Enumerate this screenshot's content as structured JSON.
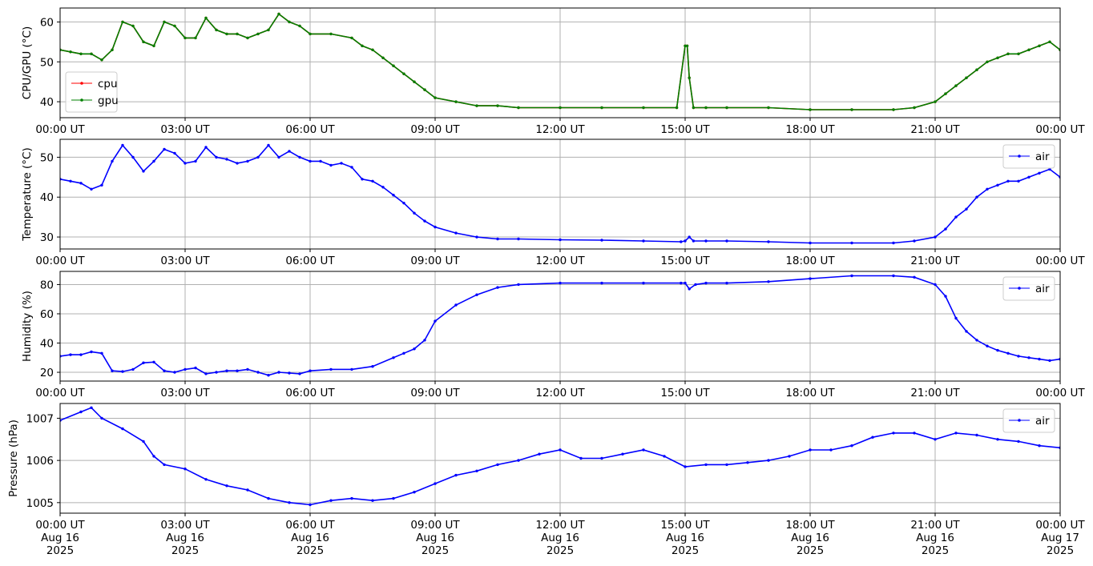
{
  "chart_data": [
    {
      "type": "line",
      "ylabel": "CPU/GPU (°C)",
      "ylim": [
        36,
        63.5
      ],
      "yticks": [
        40,
        50,
        60
      ],
      "xlim": [
        "2025-08-16T00:00",
        "2025-08-17T00:00"
      ],
      "xtick_labels": [
        "00:00 UT",
        "03:00 UT",
        "06:00 UT",
        "09:00 UT",
        "12:00 UT",
        "15:00 UT",
        "18:00 UT",
        "21:00 UT",
        "00:00 UT"
      ],
      "grid": true,
      "legend": "lower-left",
      "series": [
        {
          "name": "cpu",
          "color": "#ff0000",
          "x": [
            0,
            0.25,
            0.5,
            0.75,
            1,
            1.25,
            1.5,
            1.75,
            2,
            2.25,
            2.5,
            2.75,
            3,
            3.25,
            3.5,
            3.75,
            4,
            4.25,
            4.5,
            4.75,
            5,
            5.25,
            5.5,
            5.75,
            6,
            6.5,
            7,
            7.25,
            7.5,
            7.75,
            8,
            8.25,
            8.5,
            8.75,
            9,
            9.5,
            10,
            10.5,
            11,
            12,
            13,
            14,
            14.8,
            15,
            15.05,
            15.1,
            15.2,
            15.5,
            16,
            17,
            18,
            19,
            20,
            20.5,
            21,
            21.25,
            21.5,
            21.75,
            22,
            22.25,
            22.5,
            22.75,
            23,
            23.25,
            23.5,
            23.75,
            24
          ],
          "y": [
            53,
            52.5,
            52,
            52,
            50.5,
            53,
            60,
            59,
            55,
            54,
            60,
            59,
            56,
            56,
            61,
            58,
            57,
            57,
            56,
            57,
            58,
            62,
            60,
            59,
            57,
            57,
            56,
            54,
            53,
            51,
            49,
            47,
            45,
            43,
            41,
            40,
            39,
            39,
            38.5,
            38.5,
            38.5,
            38.5,
            38.5,
            54,
            54,
            46,
            38.5,
            38.5,
            38.5,
            38.5,
            38,
            38,
            38,
            38.5,
            40,
            42,
            44,
            46,
            48,
            50,
            51,
            52,
            52,
            53,
            54,
            55,
            53
          ]
        },
        {
          "name": "gpu",
          "color": "#008000",
          "x": [
            0,
            0.25,
            0.5,
            0.75,
            1,
            1.25,
            1.5,
            1.75,
            2,
            2.25,
            2.5,
            2.75,
            3,
            3.25,
            3.5,
            3.75,
            4,
            4.25,
            4.5,
            4.75,
            5,
            5.25,
            5.5,
            5.75,
            6,
            6.5,
            7,
            7.25,
            7.5,
            7.75,
            8,
            8.25,
            8.5,
            8.75,
            9,
            9.5,
            10,
            10.5,
            11,
            12,
            13,
            14,
            14.8,
            15,
            15.05,
            15.1,
            15.2,
            15.5,
            16,
            17,
            18,
            19,
            20,
            20.5,
            21,
            21.25,
            21.5,
            21.75,
            22,
            22.25,
            22.5,
            22.75,
            23,
            23.25,
            23.5,
            23.75,
            24
          ],
          "y": [
            53,
            52.5,
            52,
            52,
            50.5,
            53,
            60,
            59,
            55,
            54,
            60,
            59,
            56,
            56,
            61,
            58,
            57,
            57,
            56,
            57,
            58,
            62,
            60,
            59,
            57,
            57,
            56,
            54,
            53,
            51,
            49,
            47,
            45,
            43,
            41,
            40,
            39,
            39,
            38.5,
            38.5,
            38.5,
            38.5,
            38.5,
            54,
            54,
            46,
            38.5,
            38.5,
            38.5,
            38.5,
            38,
            38,
            38,
            38.5,
            40,
            42,
            44,
            46,
            48,
            50,
            51,
            52,
            52,
            53,
            54,
            55,
            53
          ]
        }
      ]
    },
    {
      "type": "line",
      "ylabel": "Temperature (°C)",
      "ylim": [
        27,
        54.5
      ],
      "yticks": [
        30,
        40,
        50
      ],
      "xlim": [
        "2025-08-16T00:00",
        "2025-08-17T00:00"
      ],
      "xtick_labels": [
        "00:00 UT",
        "03:00 UT",
        "06:00 UT",
        "09:00 UT",
        "12:00 UT",
        "15:00 UT",
        "18:00 UT",
        "21:00 UT",
        "00:00 UT"
      ],
      "grid": true,
      "legend": "top-right",
      "series": [
        {
          "name": "air",
          "color": "#0000ff",
          "x": [
            0,
            0.25,
            0.5,
            0.75,
            1,
            1.25,
            1.5,
            1.75,
            2,
            2.25,
            2.5,
            2.75,
            3,
            3.25,
            3.5,
            3.75,
            4,
            4.25,
            4.5,
            4.75,
            5,
            5.25,
            5.5,
            5.75,
            6,
            6.25,
            6.5,
            6.75,
            7,
            7.25,
            7.5,
            7.75,
            8,
            8.25,
            8.5,
            8.75,
            9,
            9.5,
            10,
            10.5,
            11,
            12,
            13,
            14,
            14.9,
            15,
            15.1,
            15.2,
            15.5,
            16,
            17,
            18,
            19,
            20,
            20.5,
            21,
            21.25,
            21.5,
            21.75,
            22,
            22.25,
            22.5,
            22.75,
            23,
            23.25,
            23.5,
            23.75,
            24
          ],
          "y": [
            44.5,
            44,
            43.5,
            42,
            43,
            49,
            53,
            50,
            46.5,
            49,
            52,
            51,
            48.5,
            49,
            52.5,
            50,
            49.5,
            48.5,
            49,
            50,
            53,
            50,
            51.5,
            50,
            49,
            49,
            48,
            48.5,
            47.5,
            44.5,
            44,
            42.5,
            40.5,
            38.5,
            36,
            34,
            32.5,
            31,
            30,
            29.5,
            29.5,
            29.3,
            29.2,
            29,
            28.8,
            29,
            30,
            29,
            29,
            29,
            28.8,
            28.5,
            28.5,
            28.5,
            29,
            30,
            32,
            35,
            37,
            40,
            42,
            43,
            44,
            44,
            45,
            46,
            47,
            45
          ]
        }
      ]
    },
    {
      "type": "line",
      "ylabel": "Humidity (%)",
      "ylim": [
        14,
        89
      ],
      "yticks": [
        20,
        40,
        60,
        80
      ],
      "xlim": [
        "2025-08-16T00:00",
        "2025-08-17T00:00"
      ],
      "xtick_labels": [
        "00:00 UT",
        "03:00 UT",
        "06:00 UT",
        "09:00 UT",
        "12:00 UT",
        "15:00 UT",
        "18:00 UT",
        "21:00 UT",
        "00:00 UT"
      ],
      "grid": true,
      "legend": "top-right",
      "series": [
        {
          "name": "air",
          "color": "#0000ff",
          "x": [
            0,
            0.25,
            0.5,
            0.75,
            1,
            1.25,
            1.5,
            1.75,
            2,
            2.25,
            2.5,
            2.75,
            3,
            3.25,
            3.5,
            3.75,
            4,
            4.25,
            4.5,
            4.75,
            5,
            5.25,
            5.5,
            5.75,
            6,
            6.5,
            7,
            7.5,
            8,
            8.25,
            8.5,
            8.75,
            9,
            9.5,
            10,
            10.5,
            11,
            12,
            13,
            14,
            14.9,
            15,
            15.1,
            15.25,
            15.5,
            16,
            17,
            18,
            19,
            20,
            20.5,
            21,
            21.25,
            21.5,
            21.75,
            22,
            22.25,
            22.5,
            22.75,
            23,
            23.25,
            23.5,
            23.75,
            24
          ],
          "y": [
            31,
            32,
            32,
            34,
            33,
            21,
            20.5,
            22,
            26.5,
            27,
            21,
            20,
            22,
            23,
            19,
            20,
            21,
            21,
            22,
            20,
            18,
            20,
            19.5,
            19,
            21,
            22,
            22,
            24,
            30,
            33,
            36,
            42,
            55,
            66,
            73,
            78,
            80,
            81,
            81,
            81,
            81,
            81,
            77,
            80,
            81,
            81,
            82,
            84,
            86,
            86,
            85,
            80,
            72,
            57,
            48,
            42,
            38,
            35,
            33,
            31,
            30,
            29,
            28,
            29
          ]
        }
      ]
    },
    {
      "type": "line",
      "ylabel": "Pressure (hPa)",
      "ylim": [
        1004.75,
        1007.35
      ],
      "yticks": [
        1005,
        1006,
        1007
      ],
      "xlim": [
        "2025-08-16T00:00",
        "2025-08-17T00:00"
      ],
      "xtick_labels": [
        "00:00 UT\nAug 16\n2025",
        "03:00 UT\nAug 16\n2025",
        "06:00 UT\nAug 16\n2025",
        "09:00 UT\nAug 16\n2025",
        "12:00 UT\nAug 16\n2025",
        "15:00 UT\nAug 16\n2025",
        "18:00 UT\nAug 16\n2025",
        "21:00 UT\nAug 16\n2025",
        "00:00 UT\nAug 17\n2025"
      ],
      "grid": true,
      "legend": "top-right",
      "series": [
        {
          "name": "air",
          "color": "#0000ff",
          "x": [
            0,
            0.5,
            0.75,
            1,
            1.5,
            2,
            2.25,
            2.5,
            3,
            3.5,
            4,
            4.5,
            5,
            5.5,
            6,
            6.5,
            7,
            7.5,
            8,
            8.5,
            9,
            9.5,
            10,
            10.5,
            11,
            11.5,
            12,
            12.5,
            13,
            13.5,
            14,
            14.5,
            15,
            15.5,
            16,
            16.5,
            17,
            17.5,
            18,
            18.5,
            19,
            19.5,
            20,
            20.5,
            21,
            21.5,
            22,
            22.5,
            23,
            23.5,
            24
          ],
          "y": [
            1006.95,
            1007.15,
            1007.25,
            1007.0,
            1006.75,
            1006.45,
            1006.1,
            1005.9,
            1005.8,
            1005.55,
            1005.4,
            1005.3,
            1005.1,
            1005.0,
            1004.95,
            1005.05,
            1005.1,
            1005.05,
            1005.1,
            1005.25,
            1005.45,
            1005.65,
            1005.75,
            1005.9,
            1006.0,
            1006.15,
            1006.25,
            1006.05,
            1006.05,
            1006.15,
            1006.25,
            1006.1,
            1005.85,
            1005.9,
            1005.9,
            1005.95,
            1006.0,
            1006.1,
            1006.25,
            1006.25,
            1006.35,
            1006.55,
            1006.65,
            1006.65,
            1006.5,
            1006.65,
            1006.6,
            1006.5,
            1006.45,
            1006.35,
            1006.3
          ]
        }
      ]
    }
  ]
}
